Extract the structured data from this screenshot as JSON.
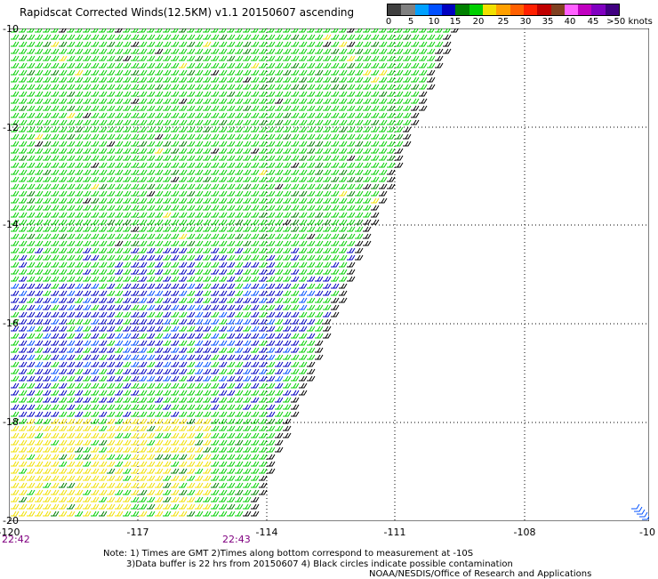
{
  "title": "Rapidscat Corrected Winds(12.5KM) v1.1 20150607 ascending",
  "colorbar": {
    "colors": [
      "#404040",
      "#808080",
      "#00a0ff",
      "#0050ff",
      "#0000c0",
      "#008000",
      "#00d000",
      "#f0e000",
      "#ffa000",
      "#ff6000",
      "#ff2000",
      "#c00000",
      "#804020",
      "#ff60ff",
      "#c000c0",
      "#8000c0",
      "#400080"
    ],
    "labels": [
      "0",
      "5",
      "10",
      "15",
      "20",
      "25",
      "30",
      "35",
      "40",
      "45",
      ">50 knots"
    ]
  },
  "axes": {
    "y_labels": [
      "-10",
      "-12",
      "-14",
      "-16",
      "-18",
      "-20"
    ],
    "x_labels": [
      "-120",
      "-117",
      "-114",
      "-111",
      "-108",
      "-10"
    ]
  },
  "times": [
    "22:42",
    "22:43"
  ],
  "notes": {
    "line1": "Note: 1) Times are GMT 2)Times along bottom correspond to measurement at -10S",
    "line2": "3)Data buffer is 22 hrs from 20150607 4) Black circles indicate possible contamination",
    "credit": "NOAA/NESDIS/Office of Research and Applications"
  }
}
